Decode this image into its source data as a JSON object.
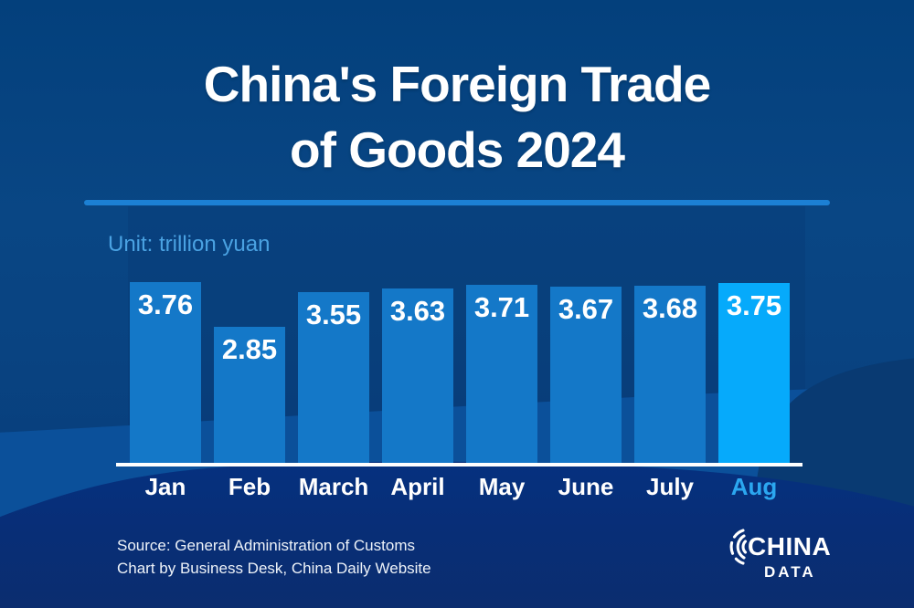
{
  "title": {
    "line1": "China's Foreign Trade",
    "line2": "of Goods 2024"
  },
  "unit_label": "Unit: trillion yuan",
  "chart_data": {
    "type": "bar",
    "title": "China's Foreign Trade of Goods 2024",
    "unit": "trillion yuan",
    "categories": [
      "Jan",
      "Feb",
      "March",
      "April",
      "May",
      "June",
      "July",
      "Aug"
    ],
    "values": [
      3.76,
      2.85,
      3.55,
      3.63,
      3.71,
      3.67,
      3.68,
      3.75
    ],
    "ylim": [
      0,
      3.9
    ],
    "grid": false,
    "legend": "none",
    "highlight_index": 7,
    "bar_color": "#1478c8",
    "highlight_bar_color": "#06aafb",
    "label_color": "#ffffff",
    "highlight_category_color": "#2ba7f0"
  },
  "source": {
    "line1": "Source: General Administration of Customs",
    "line2": "Chart by Business Desk, China Daily Website"
  },
  "logo": {
    "line1": "CHINA",
    "line2": "DATA"
  },
  "colors": {
    "background": "#094684",
    "divider": "#1c80d4",
    "unit_text": "#4aa2e2",
    "bottom_band": "#0a2d72",
    "axis_line": "#ffffff"
  }
}
